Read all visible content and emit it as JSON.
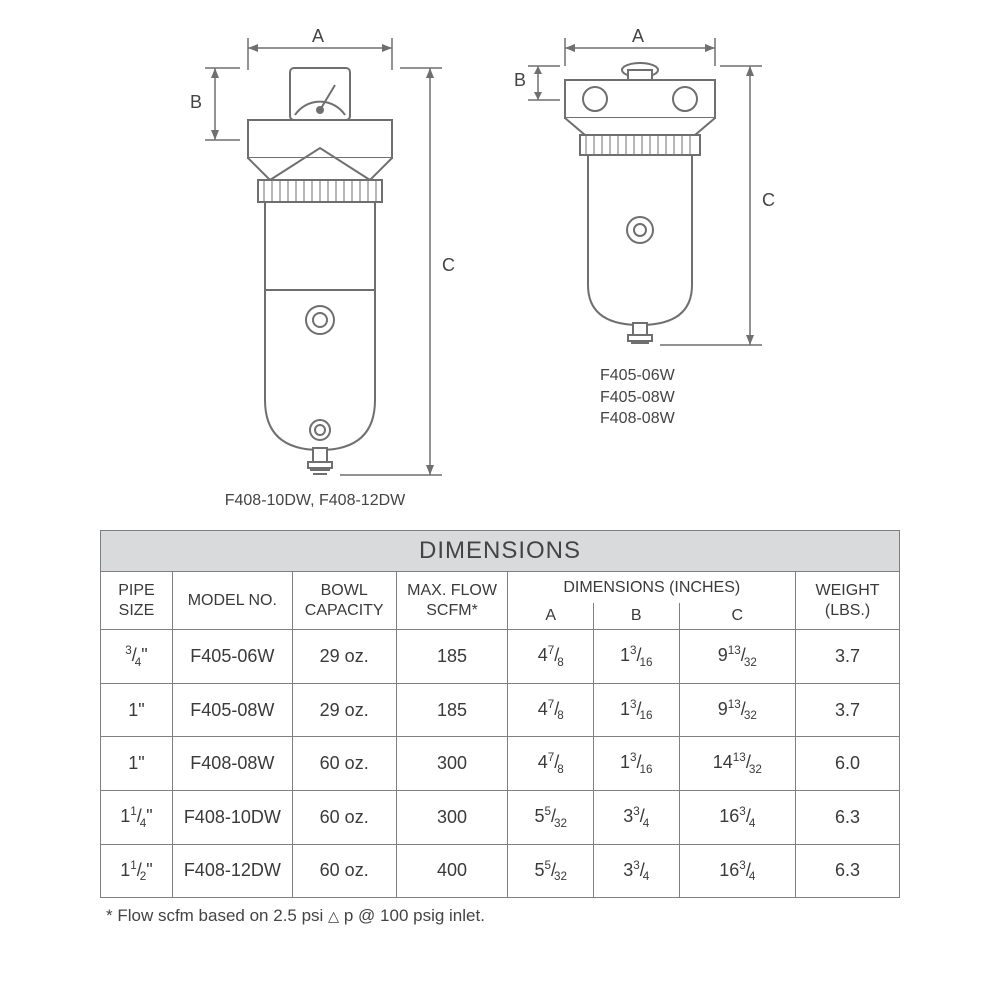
{
  "colors": {
    "background": "#ffffff",
    "text": "#3a3a3a",
    "table_border": "#808080",
    "title_row_bg": "#d8dadc",
    "diagram_stroke": "#6f6f6f",
    "diagram_fill": "#ffffff"
  },
  "diagrams": {
    "left": {
      "labels": {
        "A": "A",
        "B": "B",
        "C": "C"
      },
      "caption": "F408-10DW, F408-12DW"
    },
    "right": {
      "labels": {
        "A": "A",
        "B": "B",
        "C": "C"
      },
      "caption_lines": [
        "F405-06W",
        "F405-08W",
        "F408-08W"
      ]
    }
  },
  "table": {
    "title": "DIMENSIONS",
    "headers": {
      "pipe_size": "PIPE SIZE",
      "model_no": "MODEL NO.",
      "bowl_capacity": "BOWL CAPACITY",
      "max_flow": "MAX. FLOW SCFM*",
      "dimensions_group": "DIMENSIONS (INCHES)",
      "dim_a": "A",
      "dim_b": "B",
      "dim_c": "C",
      "weight": "WEIGHT (LBS.)"
    },
    "rows": [
      {
        "pipe_size_html": "<span class='frac'><sup>3</sup>/<sub>4</sub>\"</span>",
        "model": "F405-06W",
        "bowl": "29 oz.",
        "flow": "185",
        "a_html": "4<span class='frac'><sup>7</sup>/<sub>8</sub></span>",
        "b_html": "1<span class='frac'><sup>3</sup>/<sub>16</sub></span>",
        "c_html": "9<span class='frac'><sup>13</sup>/<sub>32</sub></span>",
        "weight": "3.7"
      },
      {
        "pipe_size_html": "1\"",
        "model": "F405-08W",
        "bowl": "29 oz.",
        "flow": "185",
        "a_html": "4<span class='frac'><sup>7</sup>/<sub>8</sub></span>",
        "b_html": "1<span class='frac'><sup>3</sup>/<sub>16</sub></span>",
        "c_html": "9<span class='frac'><sup>13</sup>/<sub>32</sub></span>",
        "weight": "3.7"
      },
      {
        "pipe_size_html": "1\"",
        "model": "F408-08W",
        "bowl": "60 oz.",
        "flow": "300",
        "a_html": "4<span class='frac'><sup>7</sup>/<sub>8</sub></span>",
        "b_html": "1<span class='frac'><sup>3</sup>/<sub>16</sub></span>",
        "c_html": "14<span class='frac'><sup>13</sup>/<sub>32</sub></span>",
        "weight": "6.0"
      },
      {
        "pipe_size_html": "1<span class='frac'><sup>1</sup>/<sub>4</sub></span>\"",
        "model": "F408-10DW",
        "bowl": "60 oz.",
        "flow": "300",
        "a_html": "5<span class='frac'><sup>5</sup>/<sub>32</sub></span>",
        "b_html": "3<span class='frac'><sup>3</sup>/<sub>4</sub></span>",
        "c_html": "16<span class='frac'><sup>3</sup>/<sub>4</sub></span>",
        "weight": "6.3"
      },
      {
        "pipe_size_html": "1<span class='frac'><sup>1</sup>/<sub>2</sub></span>\"",
        "model": "F408-12DW",
        "bowl": "60 oz.",
        "flow": "400",
        "a_html": "5<span class='frac'><sup>5</sup>/<sub>32</sub></span>",
        "b_html": "3<span class='frac'><sup>3</sup>/<sub>4</sub></span>",
        "c_html": "16<span class='frac'><sup>3</sup>/<sub>4</sub></span>",
        "weight": "6.3"
      }
    ],
    "footnote_html": "* Flow scfm based on 2.5 psi <span class='tri'>△</span> p @ 100 psig inlet."
  }
}
